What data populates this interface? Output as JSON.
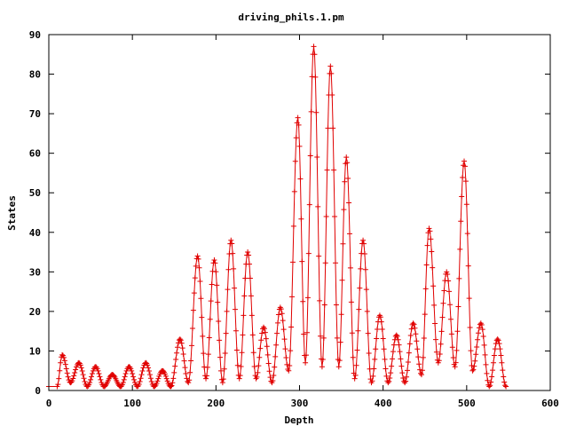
{
  "chart_data": {
    "type": "line",
    "title": "driving_phils.1.pm",
    "xlabel": "Depth",
    "ylabel": "States",
    "xlim": [
      0,
      600
    ],
    "ylim": [
      0,
      90
    ],
    "xticks": [
      0,
      100,
      200,
      300,
      400,
      500,
      600
    ],
    "yticks": [
      0,
      10,
      20,
      30,
      40,
      50,
      60,
      70,
      80,
      90
    ],
    "grid": false,
    "legend": "none",
    "marker": "plus",
    "color": "#e00000",
    "peaks": [
      {
        "x": 16,
        "y": 9
      },
      {
        "x": 36,
        "y": 7
      },
      {
        "x": 56,
        "y": 6
      },
      {
        "x": 76,
        "y": 4
      },
      {
        "x": 96,
        "y": 6
      },
      {
        "x": 116,
        "y": 7
      },
      {
        "x": 136,
        "y": 5
      },
      {
        "x": 157,
        "y": 13
      },
      {
        "x": 178,
        "y": 34
      },
      {
        "x": 198,
        "y": 33
      },
      {
        "x": 218,
        "y": 38
      },
      {
        "x": 238,
        "y": 35
      },
      {
        "x": 257,
        "y": 16
      },
      {
        "x": 277,
        "y": 21
      },
      {
        "x": 298,
        "y": 69
      },
      {
        "x": 317,
        "y": 87
      },
      {
        "x": 337,
        "y": 82
      },
      {
        "x": 356,
        "y": 59
      },
      {
        "x": 376,
        "y": 38
      },
      {
        "x": 396,
        "y": 19
      },
      {
        "x": 416,
        "y": 14
      },
      {
        "x": 436,
        "y": 17
      },
      {
        "x": 455,
        "y": 41
      },
      {
        "x": 476,
        "y": 30
      },
      {
        "x": 497,
        "y": 58
      },
      {
        "x": 517,
        "y": 17
      },
      {
        "x": 537,
        "y": 13
      }
    ],
    "troughs": [
      {
        "x": 0,
        "y": 1
      },
      {
        "x": 10,
        "y": 1
      },
      {
        "x": 26,
        "y": 2
      },
      {
        "x": 46,
        "y": 1
      },
      {
        "x": 66,
        "y": 1
      },
      {
        "x": 86,
        "y": 1
      },
      {
        "x": 106,
        "y": 1
      },
      {
        "x": 126,
        "y": 1
      },
      {
        "x": 146,
        "y": 1
      },
      {
        "x": 167,
        "y": 2
      },
      {
        "x": 188,
        "y": 3
      },
      {
        "x": 208,
        "y": 2
      },
      {
        "x": 228,
        "y": 3
      },
      {
        "x": 248,
        "y": 3
      },
      {
        "x": 267,
        "y": 2
      },
      {
        "x": 287,
        "y": 5
      },
      {
        "x": 307,
        "y": 7
      },
      {
        "x": 327,
        "y": 6
      },
      {
        "x": 347,
        "y": 6
      },
      {
        "x": 366,
        "y": 3
      },
      {
        "x": 386,
        "y": 2
      },
      {
        "x": 406,
        "y": 2
      },
      {
        "x": 426,
        "y": 2
      },
      {
        "x": 446,
        "y": 4
      },
      {
        "x": 466,
        "y": 7
      },
      {
        "x": 486,
        "y": 6
      },
      {
        "x": 507,
        "y": 5
      },
      {
        "x": 527,
        "y": 1
      },
      {
        "x": 547,
        "y": 1
      }
    ]
  }
}
